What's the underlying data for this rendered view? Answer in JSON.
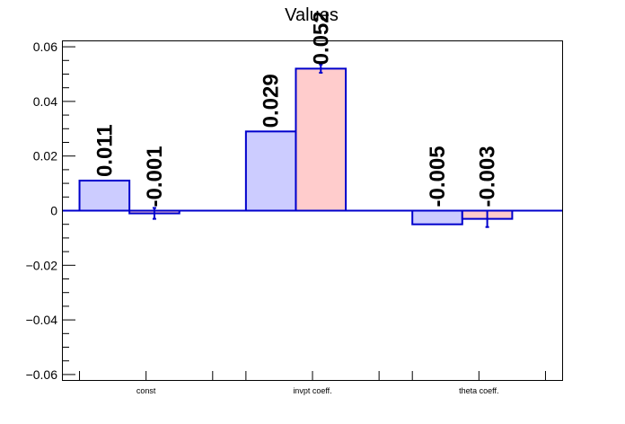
{
  "chart_data": {
    "type": "bar",
    "title": "Values",
    "xlabel": "",
    "ylabel": "",
    "categories": [
      "const",
      "invpt coeff.",
      "theta coeff."
    ],
    "series": [
      {
        "values": [
          0.011,
          0.029,
          -0.005
        ],
        "errors": [
          0.0,
          0.0,
          0.0
        ],
        "labels": [
          "0.011",
          "0.029",
          "-0.005"
        ],
        "fill": "#ccccff",
        "stroke": "#0000cc"
      },
      {
        "values": [
          -0.001,
          0.052,
          -0.003
        ],
        "errors": [
          0.002,
          0.0015,
          0.003
        ],
        "labels": [
          "-0.001",
          "0.052",
          "-0.003"
        ],
        "fill": "#ffcccc",
        "stroke": "#0000cc"
      }
    ],
    "ylim": [
      -0.062,
      0.062
    ],
    "yticks": [
      -0.06,
      -0.04,
      -0.02,
      0,
      0.02,
      0.04,
      0.06
    ],
    "ytick_labels": [
      "−0.06",
      "−0.04",
      "−0.02",
      "0",
      "0.02",
      "0.04",
      "0.06"
    ],
    "grid": false,
    "legend": "none",
    "zero_line_color": "#0000cc"
  }
}
